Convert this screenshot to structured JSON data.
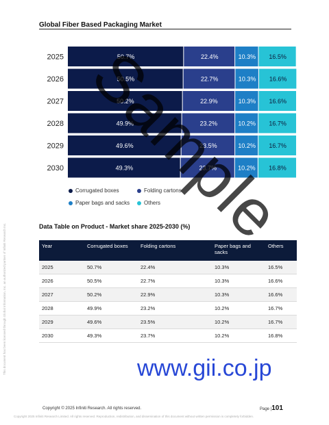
{
  "page_title": "Global Fiber Based Packaging Market",
  "chart_data": {
    "type": "bar",
    "orientation": "horizontal",
    "stacked": true,
    "categories": [
      "2025",
      "2026",
      "2027",
      "2028",
      "2029",
      "2030"
    ],
    "series": [
      {
        "name": "Corrugated boxes",
        "values": [
          50.7,
          50.5,
          50.2,
          49.9,
          49.6,
          49.3
        ],
        "labels": [
          "50.7%",
          "50.5%",
          "50.2%",
          "49.9%",
          "49.6%",
          "49.3%"
        ],
        "color": "#0c1b4a"
      },
      {
        "name": "Folding cartons",
        "values": [
          22.4,
          22.7,
          22.9,
          23.2,
          23.5,
          23.7
        ],
        "labels": [
          "22.4%",
          "22.7%",
          "22.9%",
          "23.2%",
          "23.5%",
          "23.7%"
        ],
        "color": "#2a3f8c"
      },
      {
        "name": "Paper bags and sacks",
        "values": [
          10.3,
          10.3,
          10.3,
          10.2,
          10.2,
          10.2
        ],
        "labels": [
          "10.3%",
          "10.3%",
          "10.3%",
          "10.2%",
          "10.2%",
          "10.2%"
        ],
        "color": "#1e7fc6"
      },
      {
        "name": "Others",
        "values": [
          16.5,
          16.6,
          16.6,
          16.7,
          16.7,
          16.8
        ],
        "labels": [
          "16.5%",
          "16.6%",
          "16.6%",
          "16.7%",
          "16.7%",
          "16.8%"
        ],
        "color": "#27c3d6"
      }
    ],
    "xlim": [
      0,
      100
    ],
    "grid": false,
    "legend_position": "bottom"
  },
  "legend": {
    "items": [
      {
        "label": "Corrugated boxes",
        "color": "#0c1b4a"
      },
      {
        "label": "Folding cartons",
        "color": "#2a3f8c"
      },
      {
        "label": "Paper bags and sacks",
        "color": "#1e7fc6"
      },
      {
        "label": "Others",
        "color": "#27c3d6"
      }
    ]
  },
  "table": {
    "title": "Data Table on Product - Market share 2025-2030 (%)",
    "headers": {
      "year": "Year",
      "a": "Corrugated boxes",
      "b": "Folding cartons",
      "c": "Paper bags and sacks",
      "d": "Others"
    },
    "rows": [
      {
        "year": "2025",
        "a": "50.7%",
        "b": "22.4%",
        "c": "10.3%",
        "d": "16.5%"
      },
      {
        "year": "2026",
        "a": "50.5%",
        "b": "22.7%",
        "c": "10.3%",
        "d": "16.6%"
      },
      {
        "year": "2027",
        "a": "50.2%",
        "b": "22.9%",
        "c": "10.3%",
        "d": "16.6%"
      },
      {
        "year": "2028",
        "a": "49.9%",
        "b": "23.2%",
        "c": "10.2%",
        "d": "16.7%"
      },
      {
        "year": "2029",
        "a": "49.6%",
        "b": "23.5%",
        "c": "10.2%",
        "d": "16.7%"
      },
      {
        "year": "2030",
        "a": "49.3%",
        "b": "23.7%",
        "c": "10.2%",
        "d": "16.8%"
      }
    ]
  },
  "watermark": "Sample",
  "site_mark": "www.gii.co.jp",
  "side_note": "This document has been licensed through Global Information, Inc. an authorized partner of Infiniti Research Inc.",
  "footer": {
    "copyright": "Copyright © 2025 Infiniti Research. All rights reserved.",
    "page_label": "Page |",
    "page_number": "101",
    "note": "Copyright 2025 Infiniti Research Limited. All rights reserved. Reproduction, redistribution, and dissemination of this document without written permission is completely forbidden."
  }
}
